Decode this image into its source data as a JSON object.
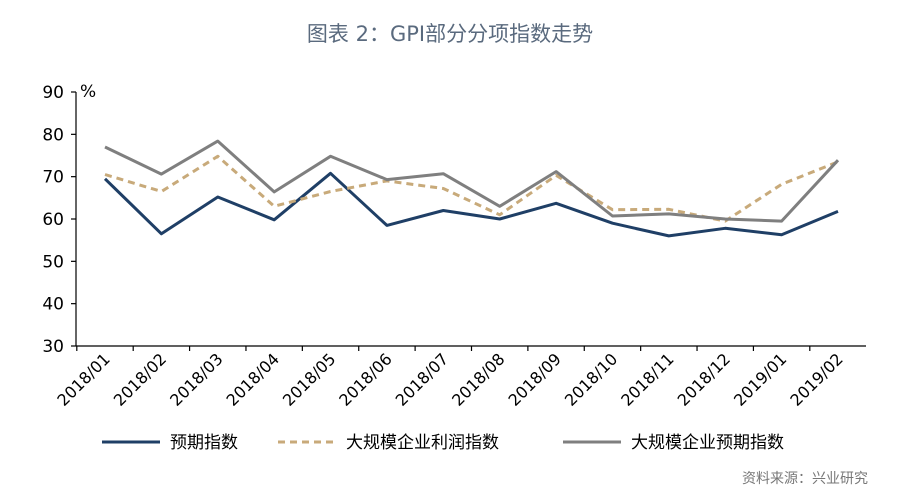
{
  "title": "图表 2：GPI部分分项指数走势",
  "source": "资料来源：兴业研究",
  "colors": {
    "axis": "#000000",
    "series": [
      "#1f3f66",
      "#c8aa7a",
      "#7f7f7f"
    ]
  },
  "chart_data": {
    "type": "line",
    "title": "图表 2：GPI部分分项指数走势",
    "ylabel": "%",
    "xlabel": "",
    "ylim": [
      30,
      90
    ],
    "yticks": [
      30,
      40,
      50,
      60,
      70,
      80,
      90
    ],
    "grid": false,
    "legend_position": "bottom",
    "categories": [
      "2018/01",
      "2018/02",
      "2018/03",
      "2018/04",
      "2018/05",
      "2018/06",
      "2018/07",
      "2018/08",
      "2018/09",
      "2018/10",
      "2018/11",
      "2018/12",
      "2019/01",
      "2019/02"
    ],
    "series": [
      {
        "name": "预期指数",
        "style": "solid",
        "values": [
          69.5,
          56.5,
          65.2,
          59.8,
          70.8,
          58.5,
          62.0,
          60.0,
          63.7,
          59.0,
          56.0,
          57.8,
          56.3,
          61.8
        ]
      },
      {
        "name": "大规模企业利润指数",
        "style": "dashed",
        "values": [
          70.5,
          66.5,
          74.8,
          63.0,
          66.5,
          69.0,
          67.2,
          61.0,
          70.3,
          62.2,
          62.3,
          59.5,
          68.2,
          73.5
        ]
      },
      {
        "name": "大规模企业预期指数",
        "style": "solid",
        "values": [
          77.0,
          70.6,
          78.4,
          66.4,
          74.8,
          69.3,
          70.7,
          63.0,
          71.2,
          60.7,
          61.2,
          60.0,
          59.5,
          73.9
        ]
      }
    ]
  }
}
